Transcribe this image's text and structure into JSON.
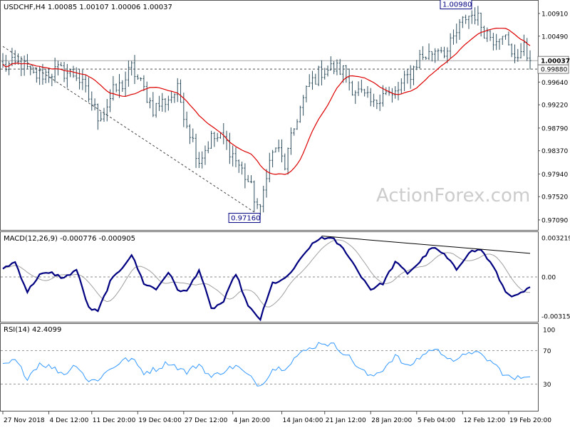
{
  "colors": {
    "background": "#ffffff",
    "candles": "#2f4f5f",
    "ma": "#dd0000",
    "macd": "#000080",
    "signal": "#a0a0a0",
    "rsi": "#3399ff",
    "grid": "#555555",
    "watermark": "#cccccc",
    "price_label_bg": "#ffffff"
  },
  "watermark": "ActionForex.com",
  "chart_data": [
    {
      "type": "candlestick",
      "title": "USDCHF,H4  1.00085 1.00107 1.00006 1.00037",
      "ylim": [
        0.9697,
        1.0108
      ],
      "y_ticks": [
        "1.00910",
        "1.00490",
        "0.99640",
        "0.99220",
        "0.98790",
        "0.98370",
        "0.97940",
        "0.97520",
        "0.97090"
      ],
      "current_price_label": "1.00037",
      "current_price": 1.00037,
      "level_label": "0.99880",
      "level": 0.9988,
      "annotations": [
        {
          "text": "1.00980",
          "value": 1.0098,
          "at_bar": 152
        },
        {
          "text": "0.97160",
          "value": 0.9716,
          "at_bar": 83
        }
      ],
      "trendlines": [
        {
          "from": [
            0,
            1.003
          ],
          "to": [
            84,
            0.9716
          ],
          "style": "dashed"
        }
      ],
      "ma_line": true,
      "close_path": [
        [
          0,
          0.9992
        ],
        [
          6,
          0.9998
        ],
        [
          10,
          0.9975
        ],
        [
          18,
          0.9985
        ],
        [
          24,
          0.9978
        ],
        [
          28,
          0.9935
        ],
        [
          31,
          0.9902
        ],
        [
          33,
          0.991
        ],
        [
          36,
          0.9945
        ],
        [
          39,
          0.996
        ],
        [
          42,
          0.999
        ],
        [
          46,
          0.995
        ],
        [
          49,
          0.9915
        ],
        [
          53,
          0.993
        ],
        [
          57,
          0.9948
        ],
        [
          60,
          0.989
        ],
        [
          64,
          0.982
        ],
        [
          68,
          0.986
        ],
        [
          72,
          0.986
        ],
        [
          76,
          0.982
        ],
        [
          80,
          0.978
        ],
        [
          84,
          0.9722
        ],
        [
          86,
          0.98
        ],
        [
          89,
          0.9845
        ],
        [
          92,
          0.981
        ],
        [
          96,
          0.99
        ],
        [
          100,
          0.996
        ],
        [
          104,
          0.9985
        ],
        [
          108,
          0.999
        ],
        [
          111,
          0.9985
        ],
        [
          114,
          0.9955
        ],
        [
          118,
          0.9935
        ],
        [
          121,
          0.992
        ],
        [
          124,
          0.995
        ],
        [
          127,
          0.9935
        ],
        [
          129,
          0.995
        ],
        [
          133,
          0.998
        ],
        [
          136,
          1.001
        ],
        [
          139,
          1.0015
        ],
        [
          142,
          1.003
        ],
        [
          145,
          1.002
        ],
        [
          148,
          1.0055
        ],
        [
          151,
          1.0085
        ],
        [
          154,
          1.009
        ],
        [
          157,
          1.006
        ],
        [
          160,
          1.0045
        ],
        [
          163,
          1.006
        ],
        [
          166,
          1.001
        ],
        [
          170,
          1.0025
        ],
        [
          172,
          1.0003
        ]
      ],
      "total_bars": 173
    },
    {
      "type": "line",
      "title": "MACD(12,26,9) -0.000776 -0.000905",
      "ylim": [
        -0.0035,
        0.0035
      ],
      "y_ticks": [
        "0.003219",
        "0.00",
        "-0.003153"
      ],
      "zero_label": "0.00",
      "series": [
        {
          "role": "macd",
          "points": [
            [
              0,
              0.0007
            ],
            [
              4,
              0.0012
            ],
            [
              8,
              -0.0012
            ],
            [
              12,
              0.0002
            ],
            [
              16,
              0.0003
            ],
            [
              20,
              -0.0001
            ],
            [
              24,
              0.0006
            ],
            [
              28,
              -0.0025
            ],
            [
              31,
              -0.0028
            ],
            [
              35,
              -0.0004
            ],
            [
              39,
              0.0008
            ],
            [
              42,
              0.0018
            ],
            [
              46,
              -0.0005
            ],
            [
              50,
              -0.001
            ],
            [
              54,
              0.0004
            ],
            [
              57,
              -0.001
            ],
            [
              60,
              -0.0012
            ],
            [
              64,
              0.0006
            ],
            [
              68,
              -0.0026
            ],
            [
              72,
              -0.002
            ],
            [
              76,
              0.0003
            ],
            [
              80,
              -0.0024
            ],
            [
              84,
              -0.0034
            ],
            [
              88,
              -0.0005
            ],
            [
              92,
              -0.0002
            ],
            [
              96,
              0.001
            ],
            [
              100,
              0.0024
            ],
            [
              104,
              0.0032
            ],
            [
              108,
              0.003
            ],
            [
              112,
              0.002
            ],
            [
              116,
              0.0004
            ],
            [
              120,
              -0.001
            ],
            [
              124,
              -0.0005
            ],
            [
              128,
              0.0012
            ],
            [
              132,
              0.0003
            ],
            [
              136,
              0.0012
            ],
            [
              140,
              0.0024
            ],
            [
              144,
              0.0018
            ],
            [
              148,
              0.0006
            ],
            [
              152,
              0.002
            ],
            [
              156,
              0.0022
            ],
            [
              160,
              0.0008
            ],
            [
              164,
              -0.0012
            ],
            [
              167,
              -0.0016
            ],
            [
              172,
              -0.0009
            ]
          ]
        },
        {
          "role": "signal",
          "lag": 4
        }
      ],
      "trendlines": [
        {
          "from": [
            104,
            0.0033
          ],
          "to": [
            172,
            0.0019
          ],
          "style": "solid"
        }
      ]
    },
    {
      "type": "line",
      "title": "RSI(14) 42.4099",
      "ylim": [
        0,
        100
      ],
      "y_ticks": [
        "100",
        "70",
        "30"
      ],
      "levels": [
        70,
        30
      ],
      "series": [
        {
          "role": "rsi",
          "points": [
            [
              0,
              52
            ],
            [
              4,
              58
            ],
            [
              8,
              38
            ],
            [
              12,
              55
            ],
            [
              16,
              50
            ],
            [
              20,
              42
            ],
            [
              24,
              54
            ],
            [
              28,
              33
            ],
            [
              31,
              36
            ],
            [
              35,
              48
            ],
            [
              39,
              58
            ],
            [
              42,
              60
            ],
            [
              46,
              44
            ],
            [
              50,
              48
            ],
            [
              54,
              56
            ],
            [
              57,
              50
            ],
            [
              60,
              44
            ],
            [
              64,
              54
            ],
            [
              68,
              38
            ],
            [
              72,
              46
            ],
            [
              76,
              52
            ],
            [
              80,
              40
            ],
            [
              84,
              28
            ],
            [
              88,
              48
            ],
            [
              92,
              50
            ],
            [
              96,
              64
            ],
            [
              100,
              72
            ],
            [
              104,
              80
            ],
            [
              108,
              76
            ],
            [
              112,
              66
            ],
            [
              116,
              50
            ],
            [
              120,
              38
            ],
            [
              124,
              48
            ],
            [
              128,
              64
            ],
            [
              132,
              50
            ],
            [
              136,
              62
            ],
            [
              140,
              72
            ],
            [
              144,
              66
            ],
            [
              148,
              56
            ],
            [
              152,
              70
            ],
            [
              156,
              64
            ],
            [
              160,
              55
            ],
            [
              164,
              40
            ],
            [
              167,
              36
            ],
            [
              172,
              42
            ]
          ]
        }
      ]
    }
  ],
  "x_axis": {
    "labels": [
      {
        "text": "27 Nov 2018",
        "at_bar": 0
      },
      {
        "text": "4 Dec 12:00",
        "at_bar": 15
      },
      {
        "text": "11 Dec 20:00",
        "at_bar": 29
      },
      {
        "text": "19 Dec 04:00",
        "at_bar": 44
      },
      {
        "text": "27 Dec 12:00",
        "at_bar": 59
      },
      {
        "text": "4 Jan 20:00",
        "at_bar": 75
      },
      {
        "text": "14 Jan 04:00",
        "at_bar": 91
      },
      {
        "text": "21 Jan 12:00",
        "at_bar": 105
      },
      {
        "text": "28 Jan 20:00",
        "at_bar": 120
      },
      {
        "text": "5 Feb 04:00",
        "at_bar": 135
      },
      {
        "text": "12 Feb 12:00",
        "at_bar": 150
      },
      {
        "text": "19 Feb 20:00",
        "at_bar": 165
      }
    ]
  }
}
